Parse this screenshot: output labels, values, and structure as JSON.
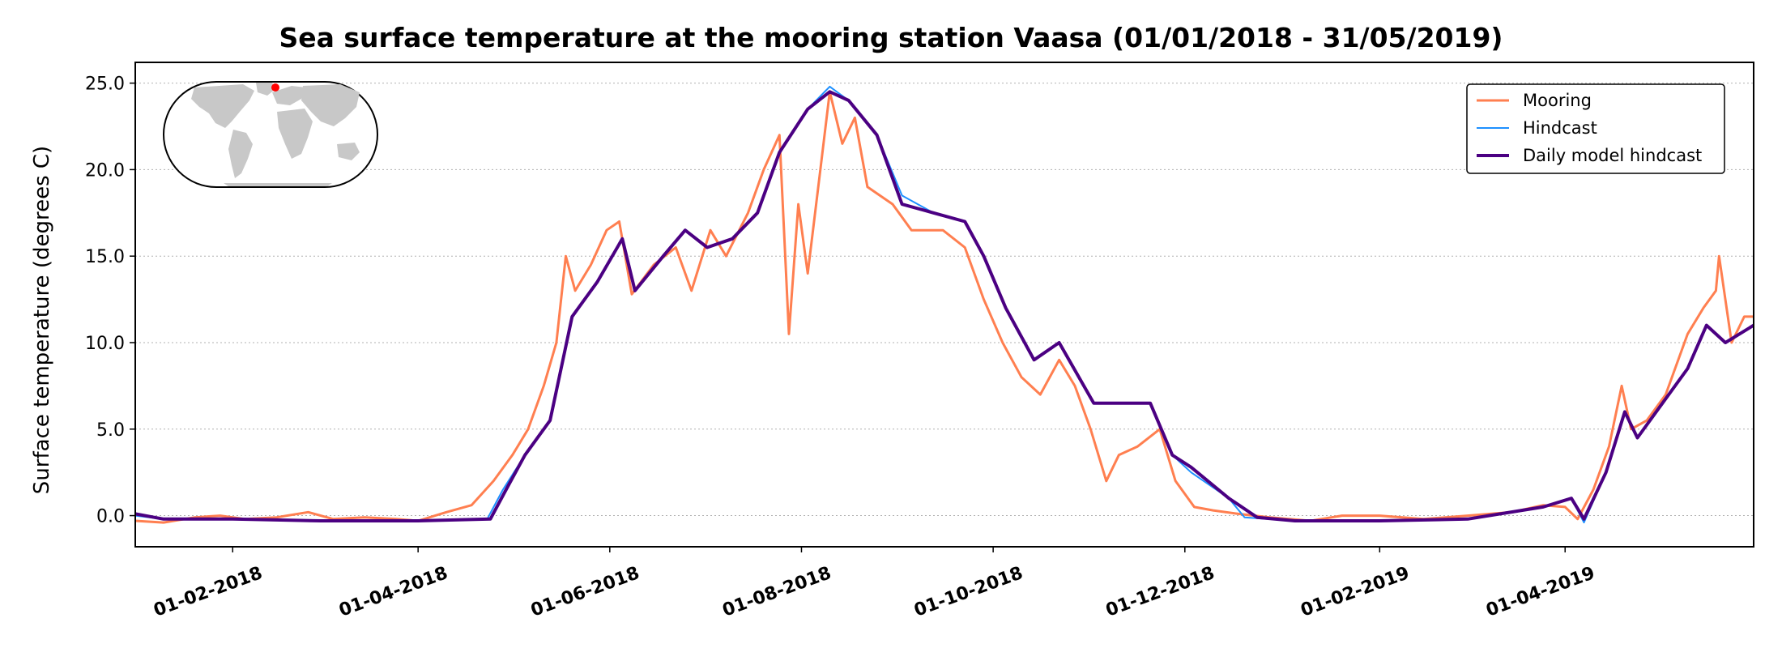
{
  "chart_data": {
    "type": "line",
    "title": "Sea surface temperature at the mooring station Vaasa (01/01/2018 - 31/05/2019)",
    "xlabel": "",
    "ylabel": "Surface temperature (degrees C)",
    "xlim": [
      "2018-01-01",
      "2019-05-31"
    ],
    "ylim": [
      -1.8,
      26.2
    ],
    "yticks": [
      0.0,
      5.0,
      10.0,
      15.0,
      20.0,
      25.0
    ],
    "ytick_labels": [
      "0.0",
      "5.0",
      "10.0",
      "15.0",
      "20.0",
      "25.0"
    ],
    "xticks": [
      "2018-02-01",
      "2018-04-01",
      "2018-06-01",
      "2018-08-01",
      "2018-10-01",
      "2018-12-01",
      "2019-02-01",
      "2019-04-01"
    ],
    "xtick_labels": [
      "01-02-2018",
      "01-04-2018",
      "01-06-2018",
      "01-08-2018",
      "01-10-2018",
      "01-12-2018",
      "01-02-2019",
      "01-04-2019"
    ],
    "grid": "horizontal dotted",
    "legend_position": "top-right",
    "inset": "world map with red marker at station location",
    "series": [
      {
        "name": "Mooring",
        "color": "#ff7f50",
        "points": [
          [
            "2018-01-01",
            -0.3
          ],
          [
            "2018-01-10",
            -0.4
          ],
          [
            "2018-01-20",
            -0.1
          ],
          [
            "2018-01-28",
            0.0
          ],
          [
            "2018-02-05",
            -0.2
          ],
          [
            "2018-02-15",
            -0.1
          ],
          [
            "2018-02-25",
            0.2
          ],
          [
            "2018-03-05",
            -0.2
          ],
          [
            "2018-03-15",
            -0.1
          ],
          [
            "2018-03-25",
            -0.2
          ],
          [
            "2018-04-01",
            -0.3
          ],
          [
            "2018-04-10",
            0.2
          ],
          [
            "2018-04-18",
            0.6
          ],
          [
            "2018-04-25",
            2.0
          ],
          [
            "2018-05-01",
            3.5
          ],
          [
            "2018-05-06",
            5.0
          ],
          [
            "2018-05-11",
            7.5
          ],
          [
            "2018-05-15",
            10.0
          ],
          [
            "2018-05-18",
            15.0
          ],
          [
            "2018-05-21",
            13.0
          ],
          [
            "2018-05-26",
            14.5
          ],
          [
            "2018-05-31",
            16.5
          ],
          [
            "2018-06-04",
            17.0
          ],
          [
            "2018-06-08",
            12.8
          ],
          [
            "2018-06-15",
            14.5
          ],
          [
            "2018-06-22",
            15.5
          ],
          [
            "2018-06-27",
            13.0
          ],
          [
            "2018-07-03",
            16.5
          ],
          [
            "2018-07-08",
            15.0
          ],
          [
            "2018-07-15",
            17.5
          ],
          [
            "2018-07-20",
            20.0
          ],
          [
            "2018-07-25",
            22.0
          ],
          [
            "2018-07-28",
            10.5
          ],
          [
            "2018-07-31",
            18.0
          ],
          [
            "2018-08-03",
            14.0
          ],
          [
            "2018-08-07",
            20.0
          ],
          [
            "2018-08-10",
            24.5
          ],
          [
            "2018-08-14",
            21.5
          ],
          [
            "2018-08-18",
            23.0
          ],
          [
            "2018-08-22",
            19.0
          ],
          [
            "2018-08-30",
            18.0
          ],
          [
            "2018-09-05",
            16.5
          ],
          [
            "2018-09-15",
            16.5
          ],
          [
            "2018-09-22",
            15.5
          ],
          [
            "2018-09-28",
            12.5
          ],
          [
            "2018-10-04",
            10.0
          ],
          [
            "2018-10-10",
            8.0
          ],
          [
            "2018-10-16",
            7.0
          ],
          [
            "2018-10-22",
            9.0
          ],
          [
            "2018-10-27",
            7.5
          ],
          [
            "2018-11-01",
            5.0
          ],
          [
            "2018-11-06",
            2.0
          ],
          [
            "2018-11-10",
            3.5
          ],
          [
            "2018-11-16",
            4.0
          ],
          [
            "2018-11-23",
            5.0
          ],
          [
            "2018-11-28",
            2.0
          ],
          [
            "2018-12-04",
            0.5
          ],
          [
            "2018-12-10",
            0.3
          ],
          [
            "2018-12-18",
            0.1
          ],
          [
            "2018-12-28",
            -0.1
          ],
          [
            "2019-01-10",
            -0.3
          ],
          [
            "2019-01-20",
            0.0
          ],
          [
            "2019-02-01",
            0.0
          ],
          [
            "2019-02-15",
            -0.2
          ],
          [
            "2019-03-01",
            0.0
          ],
          [
            "2019-03-15",
            0.2
          ],
          [
            "2019-03-25",
            0.6
          ],
          [
            "2019-04-01",
            0.5
          ],
          [
            "2019-04-05",
            -0.2
          ],
          [
            "2019-04-10",
            1.5
          ],
          [
            "2019-04-15",
            4.0
          ],
          [
            "2019-04-19",
            7.5
          ],
          [
            "2019-04-22",
            5.0
          ],
          [
            "2019-04-27",
            5.5
          ],
          [
            "2019-05-03",
            7.0
          ],
          [
            "2019-05-10",
            10.5
          ],
          [
            "2019-05-15",
            12.0
          ],
          [
            "2019-05-19",
            13.0
          ],
          [
            "2019-05-20",
            15.0
          ],
          [
            "2019-05-24",
            10.0
          ],
          [
            "2019-05-28",
            11.5
          ],
          [
            "2019-05-31",
            11.5
          ]
        ]
      },
      {
        "name": "Hindcast",
        "color": "#1e90ff",
        "points": [
          [
            "2018-01-01",
            0.0
          ],
          [
            "2018-01-10",
            -0.2
          ],
          [
            "2018-02-01",
            -0.2
          ],
          [
            "2018-03-01",
            -0.3
          ],
          [
            "2018-04-01",
            -0.3
          ],
          [
            "2018-04-23",
            -0.2
          ],
          [
            "2018-04-28",
            1.5
          ],
          [
            "2018-05-05",
            3.5
          ],
          [
            "2018-05-13",
            5.5
          ],
          [
            "2018-05-20",
            11.5
          ],
          [
            "2018-05-28",
            13.5
          ],
          [
            "2018-06-05",
            16.0
          ],
          [
            "2018-06-09",
            13.0
          ],
          [
            "2018-06-18",
            15.0
          ],
          [
            "2018-06-25",
            16.5
          ],
          [
            "2018-07-02",
            15.5
          ],
          [
            "2018-07-10",
            16.0
          ],
          [
            "2018-07-18",
            17.5
          ],
          [
            "2018-07-25",
            21.0
          ],
          [
            "2018-08-03",
            23.5
          ],
          [
            "2018-08-10",
            24.8
          ],
          [
            "2018-08-16",
            24.0
          ],
          [
            "2018-08-25",
            22.0
          ],
          [
            "2018-09-02",
            18.5
          ],
          [
            "2018-09-12",
            17.5
          ],
          [
            "2018-09-22",
            17.0
          ],
          [
            "2018-09-28",
            15.0
          ],
          [
            "2018-10-05",
            12.0
          ],
          [
            "2018-10-14",
            9.0
          ],
          [
            "2018-10-22",
            10.0
          ],
          [
            "2018-11-02",
            6.5
          ],
          [
            "2018-11-12",
            6.5
          ],
          [
            "2018-11-20",
            6.5
          ],
          [
            "2018-11-27",
            3.5
          ],
          [
            "2018-12-03",
            2.5
          ],
          [
            "2018-12-15",
            1.0
          ],
          [
            "2018-12-20",
            -0.1
          ],
          [
            "2019-01-05",
            -0.3
          ],
          [
            "2019-02-01",
            -0.3
          ],
          [
            "2019-03-01",
            -0.2
          ],
          [
            "2019-03-25",
            0.5
          ],
          [
            "2019-04-03",
            1.0
          ],
          [
            "2019-04-07",
            -0.4
          ],
          [
            "2019-04-14",
            2.5
          ],
          [
            "2019-04-20",
            6.0
          ],
          [
            "2019-04-24",
            4.5
          ],
          [
            "2019-05-02",
            6.5
          ],
          [
            "2019-05-10",
            8.5
          ],
          [
            "2019-05-16",
            11.0
          ],
          [
            "2019-05-22",
            10.0
          ],
          [
            "2019-05-31",
            11.0
          ]
        ]
      },
      {
        "name": "Daily model hindcast",
        "color": "#4b0082",
        "points": [
          [
            "2018-01-01",
            0.1
          ],
          [
            "2018-01-10",
            -0.2
          ],
          [
            "2018-02-01",
            -0.2
          ],
          [
            "2018-03-01",
            -0.3
          ],
          [
            "2018-04-01",
            -0.3
          ],
          [
            "2018-04-24",
            -0.2
          ],
          [
            "2018-04-29",
            1.5
          ],
          [
            "2018-05-05",
            3.5
          ],
          [
            "2018-05-13",
            5.5
          ],
          [
            "2018-05-20",
            11.5
          ],
          [
            "2018-05-28",
            13.5
          ],
          [
            "2018-06-05",
            16.0
          ],
          [
            "2018-06-09",
            13.0
          ],
          [
            "2018-06-18",
            15.0
          ],
          [
            "2018-06-25",
            16.5
          ],
          [
            "2018-07-02",
            15.5
          ],
          [
            "2018-07-10",
            16.0
          ],
          [
            "2018-07-18",
            17.5
          ],
          [
            "2018-07-25",
            21.0
          ],
          [
            "2018-08-03",
            23.5
          ],
          [
            "2018-08-10",
            24.5
          ],
          [
            "2018-08-16",
            24.0
          ],
          [
            "2018-08-25",
            22.0
          ],
          [
            "2018-09-02",
            18.0
          ],
          [
            "2018-09-12",
            17.5
          ],
          [
            "2018-09-22",
            17.0
          ],
          [
            "2018-09-28",
            15.0
          ],
          [
            "2018-10-05",
            12.0
          ],
          [
            "2018-10-14",
            9.0
          ],
          [
            "2018-10-22",
            10.0
          ],
          [
            "2018-11-02",
            6.5
          ],
          [
            "2018-11-12",
            6.5
          ],
          [
            "2018-11-20",
            6.5
          ],
          [
            "2018-11-27",
            3.5
          ],
          [
            "2018-12-03",
            2.8
          ],
          [
            "2018-12-15",
            1.0
          ],
          [
            "2018-12-24",
            -0.1
          ],
          [
            "2019-01-05",
            -0.3
          ],
          [
            "2019-02-01",
            -0.3
          ],
          [
            "2019-03-01",
            -0.2
          ],
          [
            "2019-03-25",
            0.5
          ],
          [
            "2019-04-03",
            1.0
          ],
          [
            "2019-04-07",
            -0.2
          ],
          [
            "2019-04-14",
            2.5
          ],
          [
            "2019-04-20",
            6.0
          ],
          [
            "2019-04-24",
            4.5
          ],
          [
            "2019-05-02",
            6.5
          ],
          [
            "2019-05-10",
            8.5
          ],
          [
            "2019-05-16",
            11.0
          ],
          [
            "2019-05-22",
            10.0
          ],
          [
            "2019-05-31",
            11.0
          ]
        ]
      }
    ]
  }
}
